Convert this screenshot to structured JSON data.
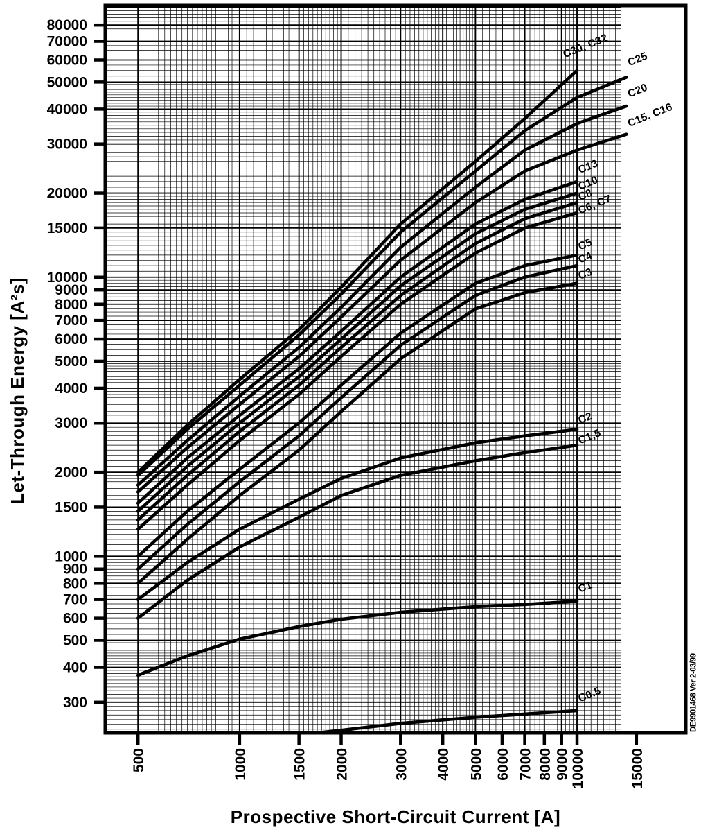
{
  "title_block": {
    "y_axis_title": "Let-Through Energy [A²s]",
    "x_axis_title": "Prospective Short-Circuit Current [A]",
    "stamp": "DE9901468 Ver 2-03/99"
  },
  "colors": {
    "ink": "#000000",
    "bg": "#ffffff"
  },
  "chart_data": {
    "type": "line",
    "title": "",
    "xlabel": "Prospective Short-Circuit Current [A]",
    "ylabel": "Let-Through Energy [A²s]",
    "x_scale": "log",
    "y_scale": "log",
    "xlim": [
      400,
      21000
    ],
    "ylim": [
      233,
      94000
    ],
    "grid": "on-log-minor-and-major",
    "grid_x_range": [
      500,
      13500
    ],
    "legend_position": "curve-end-labels",
    "x_ticks": [
      500,
      1000,
      1500,
      2000,
      3000,
      4000,
      5000,
      6000,
      7000,
      8000,
      9000,
      10000,
      15000
    ],
    "y_ticks": [
      300,
      400,
      500,
      600,
      700,
      800,
      900,
      1000,
      1500,
      2000,
      3000,
      4000,
      5000,
      6000,
      7000,
      8000,
      9000,
      10000,
      15000,
      20000,
      30000,
      40000,
      50000,
      60000,
      70000,
      80000
    ],
    "series": [
      {
        "name": "C30, C32",
        "label_at": [
          9200,
          61000
        ],
        "points": [
          [
            500,
            2000
          ],
          [
            700,
            2950
          ],
          [
            1000,
            4300
          ],
          [
            1500,
            6500
          ],
          [
            2000,
            9200
          ],
          [
            3000,
            15500
          ],
          [
            5000,
            26000
          ],
          [
            7000,
            37000
          ],
          [
            10000,
            55000
          ]
        ]
      },
      {
        "name": "C25",
        "label_at": [
          14300,
          57000
        ],
        "points": [
          [
            500,
            1950
          ],
          [
            700,
            2850
          ],
          [
            1000,
            4100
          ],
          [
            1500,
            6200
          ],
          [
            2000,
            8700
          ],
          [
            3000,
            14500
          ],
          [
            5000,
            24000
          ],
          [
            7000,
            33500
          ],
          [
            10000,
            44000
          ],
          [
            14000,
            52000
          ]
        ]
      },
      {
        "name": "C20",
        "label_at": [
          14300,
          44000
        ],
        "points": [
          [
            500,
            1800
          ],
          [
            700,
            2600
          ],
          [
            1000,
            3750
          ],
          [
            1500,
            5600
          ],
          [
            2000,
            7800
          ],
          [
            3000,
            12800
          ],
          [
            5000,
            21000
          ],
          [
            7000,
            28500
          ],
          [
            10000,
            35500
          ],
          [
            14000,
            41000
          ]
        ]
      },
      {
        "name": "C15, C16",
        "label_at": [
          14300,
          34500
        ],
        "points": [
          [
            500,
            1700
          ],
          [
            700,
            2450
          ],
          [
            1000,
            3500
          ],
          [
            1500,
            5200
          ],
          [
            2000,
            7200
          ],
          [
            3000,
            11500
          ],
          [
            5000,
            18500
          ],
          [
            7000,
            24000
          ],
          [
            10000,
            28500
          ],
          [
            14000,
            32500
          ]
        ]
      },
      {
        "name": "C13",
        "label_at": [
          10200,
          23500
        ],
        "points": [
          [
            500,
            1550
          ],
          [
            700,
            2250
          ],
          [
            1000,
            3200
          ],
          [
            1500,
            4700
          ],
          [
            2000,
            6400
          ],
          [
            3000,
            10000
          ],
          [
            5000,
            15500
          ],
          [
            7000,
            19000
          ],
          [
            10000,
            22000
          ]
        ]
      },
      {
        "name": "C10",
        "label_at": [
          10200,
          20500
        ],
        "points": [
          [
            500,
            1450
          ],
          [
            700,
            2100
          ],
          [
            1000,
            3000
          ],
          [
            1500,
            4400
          ],
          [
            2000,
            6000
          ],
          [
            3000,
            9300
          ],
          [
            5000,
            14300
          ],
          [
            7000,
            17500
          ],
          [
            10000,
            20000
          ]
        ]
      },
      {
        "name": "C8",
        "label_at": [
          10200,
          18800
        ],
        "points": [
          [
            500,
            1350
          ],
          [
            700,
            1950
          ],
          [
            1000,
            2800
          ],
          [
            1500,
            4100
          ],
          [
            2000,
            5600
          ],
          [
            3000,
            8600
          ],
          [
            5000,
            13200
          ],
          [
            7000,
            16200
          ],
          [
            10000,
            18500
          ]
        ]
      },
      {
        "name": "C6, C7",
        "label_at": [
          10200,
          16800
        ],
        "points": [
          [
            500,
            1250
          ],
          [
            700,
            1800
          ],
          [
            1000,
            2600
          ],
          [
            1500,
            3800
          ],
          [
            2000,
            5200
          ],
          [
            3000,
            8000
          ],
          [
            5000,
            12200
          ],
          [
            7000,
            15000
          ],
          [
            10000,
            17000
          ]
        ]
      },
      {
        "name": "C5",
        "label_at": [
          10200,
          12500
        ],
        "points": [
          [
            500,
            1000
          ],
          [
            700,
            1450
          ],
          [
            1000,
            2050
          ],
          [
            1500,
            3000
          ],
          [
            2000,
            4100
          ],
          [
            3000,
            6300
          ],
          [
            5000,
            9500
          ],
          [
            7000,
            11000
          ],
          [
            10000,
            12000
          ]
        ]
      },
      {
        "name": "C4",
        "label_at": [
          10200,
          11200
        ],
        "points": [
          [
            500,
            900
          ],
          [
            700,
            1300
          ],
          [
            1000,
            1850
          ],
          [
            1500,
            2700
          ],
          [
            2000,
            3700
          ],
          [
            3000,
            5700
          ],
          [
            5000,
            8600
          ],
          [
            7000,
            10000
          ],
          [
            10000,
            11000
          ]
        ]
      },
      {
        "name": "C3",
        "label_at": [
          10200,
          9800
        ],
        "points": [
          [
            500,
            800
          ],
          [
            700,
            1150
          ],
          [
            1000,
            1650
          ],
          [
            1500,
            2400
          ],
          [
            2000,
            3300
          ],
          [
            3000,
            5100
          ],
          [
            5000,
            7700
          ],
          [
            7000,
            8800
          ],
          [
            10000,
            9500
          ]
        ]
      },
      {
        "name": "C2",
        "label_at": [
          10200,
          2980
        ],
        "points": [
          [
            500,
            700
          ],
          [
            700,
            950
          ],
          [
            1000,
            1250
          ],
          [
            1500,
            1600
          ],
          [
            2000,
            1900
          ],
          [
            3000,
            2250
          ],
          [
            5000,
            2550
          ],
          [
            7000,
            2700
          ],
          [
            10000,
            2850
          ]
        ]
      },
      {
        "name": "C1,5",
        "label_at": [
          10200,
          2520
        ],
        "points": [
          [
            500,
            600
          ],
          [
            700,
            820
          ],
          [
            1000,
            1080
          ],
          [
            1500,
            1380
          ],
          [
            2000,
            1650
          ],
          [
            3000,
            1950
          ],
          [
            5000,
            2200
          ],
          [
            7000,
            2350
          ],
          [
            10000,
            2500
          ]
        ]
      },
      {
        "name": "C1",
        "label_at": [
          10200,
          740
        ],
        "points": [
          [
            500,
            375
          ],
          [
            700,
            440
          ],
          [
            1000,
            505
          ],
          [
            1500,
            560
          ],
          [
            2000,
            595
          ],
          [
            3000,
            630
          ],
          [
            5000,
            660
          ],
          [
            7000,
            672
          ],
          [
            10000,
            690
          ]
        ]
      },
      {
        "name": "C0.5",
        "label_at": [
          10200,
          300
        ],
        "points": [
          [
            1700,
            233
          ],
          [
            2000,
            238
          ],
          [
            3000,
            252
          ],
          [
            5000,
            265
          ],
          [
            7000,
            272
          ],
          [
            10000,
            280
          ]
        ]
      }
    ]
  }
}
